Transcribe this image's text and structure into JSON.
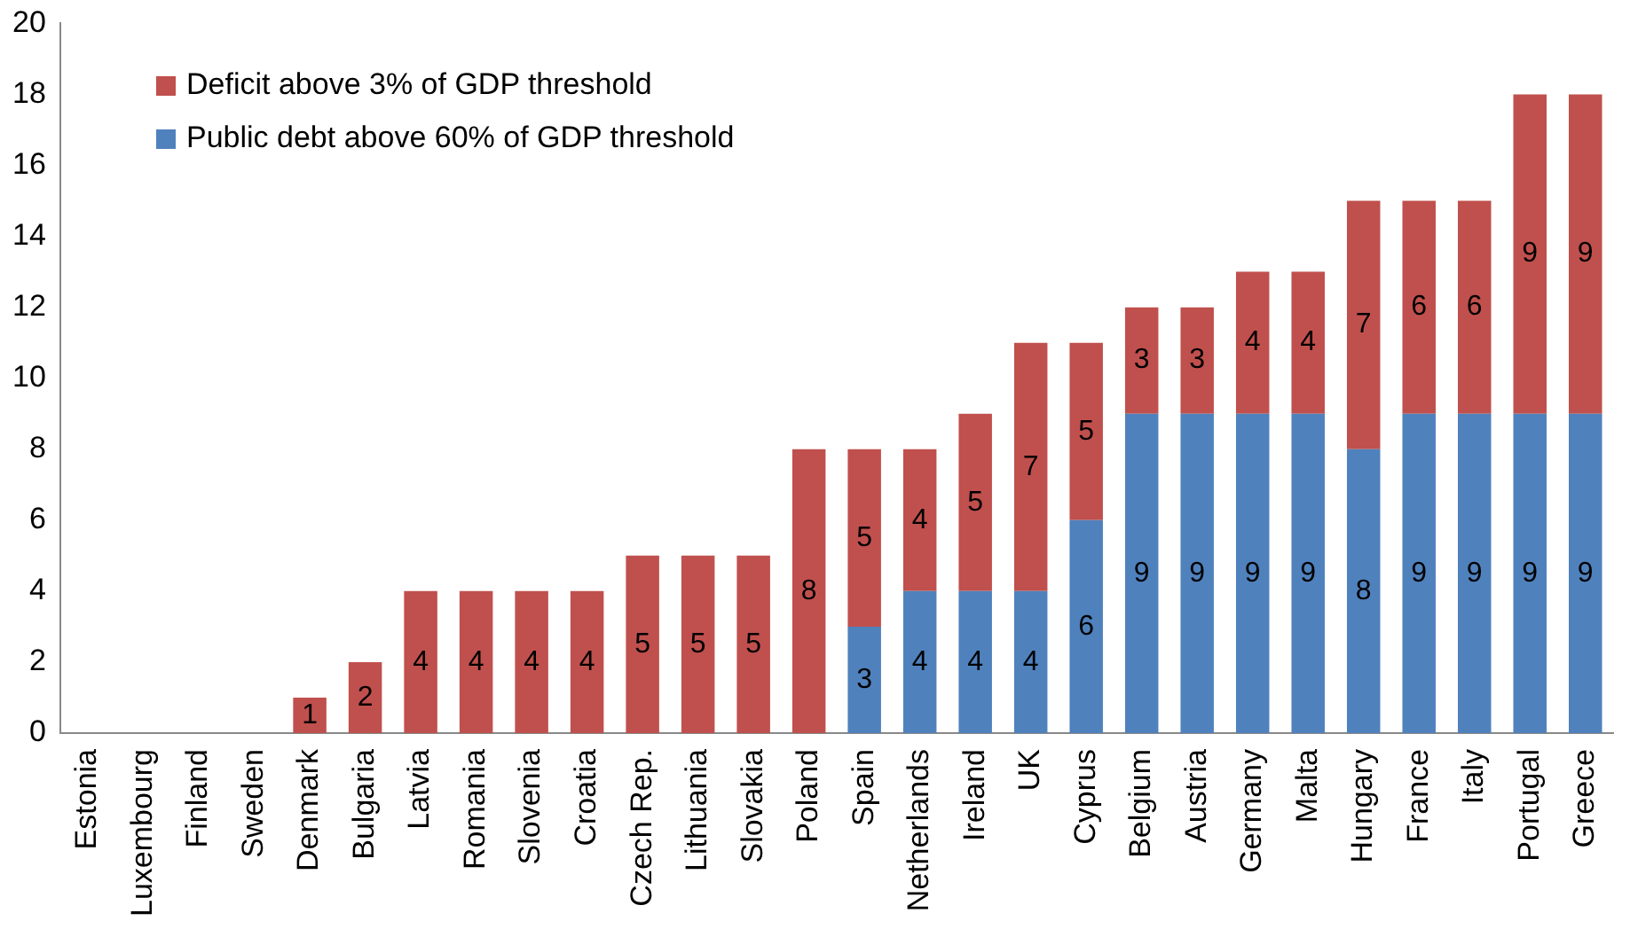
{
  "chart_data": {
    "type": "bar",
    "stacked": true,
    "categories": [
      "Estonia",
      "Luxembourg",
      "Finland",
      "Sweden",
      "Denmark",
      "Bulgaria",
      "Latvia",
      "Romania",
      "Slovenia",
      "Croatia",
      "Czech Rep.",
      "Lithuania",
      "Slovakia",
      "Poland",
      "Spain",
      "Netherlands",
      "Ireland",
      "UK",
      "Cyprus",
      "Belgium",
      "Austria",
      "Germany",
      "Malta",
      "Hungary",
      "France",
      "Italy",
      "Portugal",
      "Greece"
    ],
    "series": [
      {
        "name": "Public debt above 60% of GDP threshold",
        "color": "#4f81bd",
        "values": [
          0,
          0,
          0,
          0,
          0,
          0,
          0,
          0,
          0,
          0,
          0,
          0,
          0,
          0,
          3,
          4,
          4,
          4,
          6,
          9,
          9,
          9,
          9,
          8,
          9,
          9,
          9,
          9
        ],
        "value_labels": [
          null,
          null,
          null,
          null,
          null,
          null,
          null,
          null,
          null,
          null,
          null,
          null,
          null,
          null,
          "3",
          "4",
          "4",
          "4",
          "6",
          "9",
          "9",
          "9",
          "9",
          "8",
          "9",
          "9",
          "9",
          "9"
        ]
      },
      {
        "name": "Deficit above 3% of GDP threshold",
        "color": "#c0504d",
        "values": [
          0,
          0,
          0,
          0,
          1,
          2,
          4,
          4,
          4,
          4,
          5,
          5,
          5,
          8,
          5,
          4,
          5,
          7,
          5,
          3,
          3,
          4,
          4,
          7,
          6,
          6,
          9,
          9
        ],
        "value_labels": [
          null,
          null,
          null,
          null,
          "1",
          "2",
          "4",
          "4",
          "4",
          "4",
          "5",
          "5",
          "5",
          "8",
          "5",
          "4",
          "5",
          "7",
          "5",
          "3",
          "3",
          "4",
          "4",
          "7",
          "6",
          "6",
          "9",
          "9"
        ]
      }
    ],
    "ylim": [
      0,
      20
    ],
    "yticks": [
      0,
      2,
      4,
      6,
      8,
      10,
      12,
      14,
      16,
      18,
      20
    ],
    "grid": false,
    "legend": "top left"
  }
}
